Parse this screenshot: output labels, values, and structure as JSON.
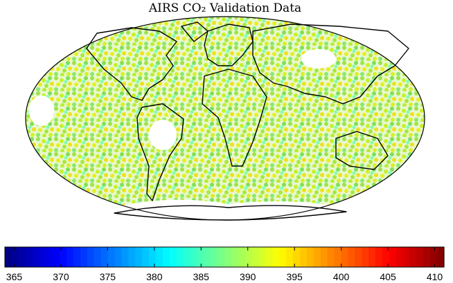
{
  "chart_data": {
    "type": "map",
    "title": "AIRS CO₂ Validation Data",
    "colorbar": {
      "colormap": "jet",
      "clim": [
        364,
        411
      ],
      "ticks": [
        365,
        370,
        375,
        380,
        385,
        390,
        395,
        400,
        405,
        410
      ]
    }
  }
}
